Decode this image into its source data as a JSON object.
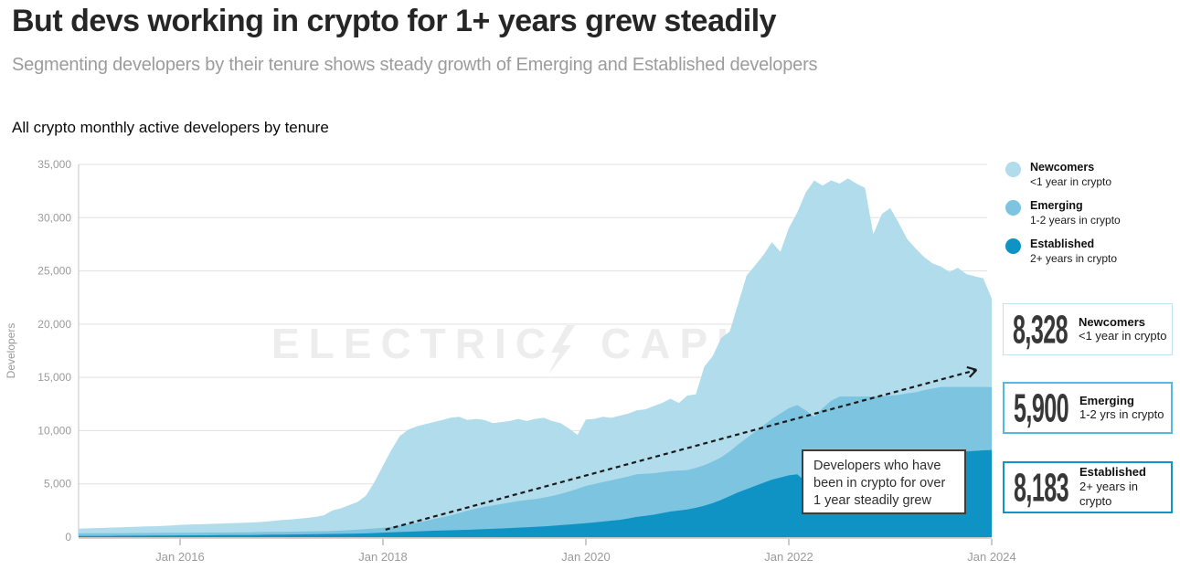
{
  "header": {
    "title": "But devs working in crypto for 1+ years grew steadily",
    "subtitle": "Segmenting developers by their tenure shows steady growth of Emerging and Established developers"
  },
  "chart": {
    "title": "All crypto monthly active developers by tenure",
    "ylabel": "Developers",
    "watermark_left": "ELECTRIC",
    "watermark_right": "CAPITAL",
    "watermark_color": "#ededed"
  },
  "legend": [
    {
      "name": "Newcomers",
      "desc": "<1 year in crypto",
      "color": "#b1dcec"
    },
    {
      "name": "Emerging",
      "desc": "1-2 years in crypto",
      "color": "#7cc4df"
    },
    {
      "name": "Established",
      "desc": "2+ years in crypto",
      "color": "#0f93c4"
    }
  ],
  "stats": [
    {
      "value": "8,328",
      "label": "Newcomers",
      "desc": "<1 year in crypto",
      "border_color": "#bfe3f0",
      "border_width": 1.5
    },
    {
      "value": "5,900",
      "label": "Emerging",
      "desc": "1-2 yrs in crypto",
      "border_color": "#56b7e0",
      "border_width": 2
    },
    {
      "value": "8,183",
      "label": "Established",
      "desc": "2+ years in crypto",
      "border_color": "#1193c3",
      "border_width": 2
    }
  ],
  "annotation": {
    "text": "Developers who have been in crypto for over 1 year steadily grew"
  },
  "chart_data": {
    "type": "area",
    "stacked": true,
    "title": "All crypto monthly active developers by tenure",
    "ylabel": "Developers",
    "ylim": [
      0,
      35000
    ],
    "y_ticks": [
      0,
      5000,
      10000,
      15000,
      20000,
      25000,
      30000,
      35000
    ],
    "x_start": "2015-01",
    "x_end": "2024-01",
    "interval": "monthly",
    "x_ticks": [
      {
        "label": "Jan 2016",
        "month_index": 12
      },
      {
        "label": "Jan 2018",
        "month_index": 36
      },
      {
        "label": "Jan 2020",
        "month_index": 60
      },
      {
        "label": "Jan 2022",
        "month_index": 84
      },
      {
        "label": "Jan 2024",
        "month_index": 108
      }
    ],
    "grid": true,
    "legend_position": "right",
    "series": [
      {
        "name": "Established",
        "desc": "2+ years in crypto",
        "color": "#0f93c4",
        "values": [
          100,
          105,
          110,
          115,
          120,
          125,
          130,
          135,
          140,
          145,
          150,
          155,
          160,
          165,
          170,
          175,
          180,
          185,
          190,
          195,
          200,
          210,
          220,
          230,
          240,
          250,
          260,
          270,
          280,
          290,
          300,
          310,
          320,
          335,
          355,
          385,
          420,
          450,
          480,
          510,
          540,
          570,
          600,
          620,
          640,
          665,
          690,
          720,
          750,
          780,
          815,
          850,
          890,
          930,
          970,
          1010,
          1060,
          1120,
          1180,
          1240,
          1300,
          1380,
          1460,
          1540,
          1620,
          1750,
          1900,
          2000,
          2100,
          2250,
          2400,
          2500,
          2600,
          2750,
          2950,
          3200,
          3500,
          3850,
          4200,
          4500,
          4800,
          5100,
          5400,
          5600,
          5800,
          5900,
          5200,
          4700,
          5600,
          6300,
          6700,
          6800,
          6900,
          7000,
          7100,
          7200,
          7300,
          7350,
          7400,
          7500,
          7600,
          7750,
          7900,
          7950,
          8000,
          8050,
          8100,
          8150,
          8183
        ]
      },
      {
        "name": "Emerging",
        "desc": "1-2 years in crypto",
        "color": "#7cc4df",
        "values": [
          250,
          252,
          248,
          255,
          250,
          245,
          250,
          255,
          250,
          248,
          252,
          255,
          250,
          248,
          252,
          255,
          250,
          245,
          248,
          252,
          255,
          258,
          260,
          265,
          250,
          252,
          255,
          260,
          265,
          270,
          280,
          300,
          330,
          370,
          410,
          430,
          450,
          520,
          600,
          700,
          800,
          950,
          1100,
          1250,
          1400,
          1600,
          1800,
          1950,
          2100,
          2200,
          2300,
          2400,
          2500,
          2550,
          2600,
          2700,
          2800,
          2950,
          3100,
          3300,
          3500,
          3600,
          3700,
          3800,
          3900,
          3950,
          4000,
          3950,
          3900,
          3850,
          3800,
          3750,
          3700,
          3750,
          3800,
          3900,
          4000,
          4200,
          4500,
          4800,
          5100,
          5400,
          5700,
          6000,
          6300,
          6500,
          6700,
          6600,
          6500,
          6500,
          6500,
          6400,
          6300,
          6200,
          6100,
          6050,
          6000,
          6000,
          6100,
          6100,
          6200,
          6200,
          6200,
          6150,
          6100,
          6050,
          6000,
          5950,
          5900
        ]
      },
      {
        "name": "Newcomers",
        "desc": "<1 year in crypto",
        "color": "#b1dcec",
        "values": [
          450,
          463,
          492,
          500,
          530,
          550,
          570,
          590,
          610,
          627,
          648,
          690,
          740,
          767,
          778,
          800,
          820,
          850,
          862,
          883,
          905,
          932,
          970,
          1025,
          1110,
          1148,
          1205,
          1270,
          1355,
          1490,
          1920,
          2090,
          2350,
          2595,
          3140,
          4385,
          5830,
          7230,
          8420,
          8890,
          9060,
          9080,
          9100,
          9130,
          9160,
          9035,
          8510,
          8430,
          8150,
          7720,
          7685,
          7650,
          7710,
          7420,
          7530,
          7490,
          7040,
          6630,
          5920,
          5060,
          6250,
          6120,
          6140,
          5860,
          5880,
          5900,
          6000,
          6050,
          6300,
          6500,
          6800,
          6350,
          7000,
          6900,
          9250,
          9900,
          11200,
          11250,
          13200,
          15250,
          15600,
          16000,
          16600,
          15200,
          16900,
          18100,
          20450,
          22200,
          20900,
          20700,
          20000,
          20500,
          20000,
          19600,
          15250,
          17100,
          17600,
          16150,
          14500,
          13500,
          12500,
          11750,
          11300,
          10800,
          11200,
          10600,
          10400,
          10200,
          8328
        ]
      }
    ],
    "trend_arrow": {
      "style": "dashed",
      "color": "#1a1a1a",
      "from_month": 36.3,
      "from_value": 700,
      "to_month": 106.2,
      "to_value": 15700
    },
    "annotations": [
      "Developers who have been in crypto for over 1 year steadily grew"
    ]
  }
}
